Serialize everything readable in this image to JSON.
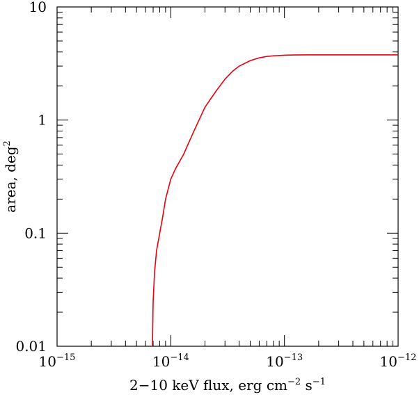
{
  "chart_data": {
    "type": "line",
    "title": "",
    "xlabel": {
      "prefix": "2−10 keV flux, erg cm",
      "exp1": "−2",
      "mid": " s",
      "exp2": "−1"
    },
    "ylabel": {
      "base": "area, deg",
      "exp": "2"
    },
    "xscale": "log",
    "yscale": "log",
    "xlim": [
      1e-15,
      1e-12
    ],
    "ylim": [
      0.01,
      10
    ],
    "grid": false,
    "x_ticks": [
      {
        "value": 1e-15,
        "base": "10",
        "exp": "−15"
      },
      {
        "value": 1e-14,
        "base": "10",
        "exp": "−14"
      },
      {
        "value": 1e-13,
        "base": "10",
        "exp": "−13"
      },
      {
        "value": 1e-12,
        "base": "10",
        "exp": "−12"
      }
    ],
    "y_ticks": [
      {
        "value": 0.01,
        "label": "0.01"
      },
      {
        "value": 0.1,
        "label": "0.1"
      },
      {
        "value": 1,
        "label": "1"
      },
      {
        "value": 10,
        "label": "10"
      }
    ],
    "series": [
      {
        "color": "#e8000b",
        "x": [
          6.9e-15,
          7e-15,
          7.2e-15,
          7.5e-15,
          8e-15,
          8.5e-15,
          9e-15,
          1e-14,
          1.1e-14,
          1.3e-14,
          1.6e-14,
          2e-14,
          2.5e-14,
          3e-14,
          3.5e-14,
          4e-14,
          5e-14,
          6e-14,
          7e-14,
          8e-14,
          1e-13,
          1.2e-13,
          1.5e-13,
          2e-13,
          3e-13,
          5e-13,
          1e-12
        ],
        "y": [
          0.01,
          0.025,
          0.045,
          0.07,
          0.1,
          0.14,
          0.2,
          0.3,
          0.37,
          0.5,
          0.8,
          1.3,
          1.8,
          2.3,
          2.7,
          3.0,
          3.35,
          3.55,
          3.65,
          3.7,
          3.74,
          3.76,
          3.77,
          3.77,
          3.77,
          3.77,
          3.77
        ]
      }
    ]
  }
}
